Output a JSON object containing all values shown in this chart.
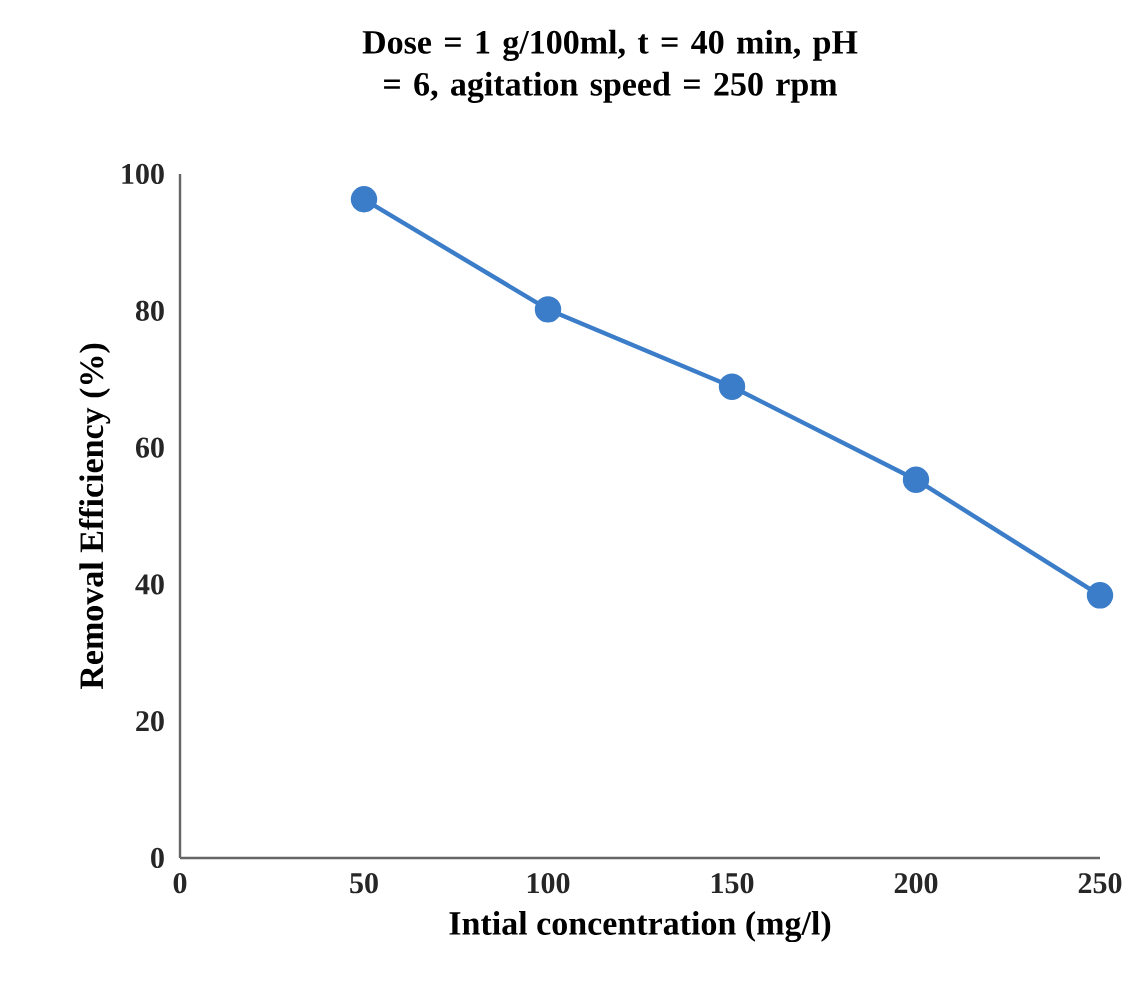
{
  "chart_data": {
    "type": "line",
    "title": "Dose = 1 g/100ml, t = 40 min, pH = 6, agitation speed = 250 rpm",
    "xlabel": "Intial concentration (mg/l)",
    "ylabel": "Removal Efficiency (%)",
    "x": [
      50,
      100,
      150,
      200,
      250
    ],
    "series": [
      {
        "color": "#3b7dc8",
        "values": [
          96.3,
          80.2,
          68.9,
          55.3,
          38.4
        ]
      }
    ],
    "xlim": [
      0,
      250
    ],
    "xticks": [
      0,
      50,
      100,
      150,
      200,
      250
    ],
    "ylim": [
      0,
      100
    ],
    "yticks": [
      0,
      20,
      40,
      60,
      80,
      100
    ],
    "grid": false,
    "marker": "circle",
    "line_style": "solid"
  }
}
